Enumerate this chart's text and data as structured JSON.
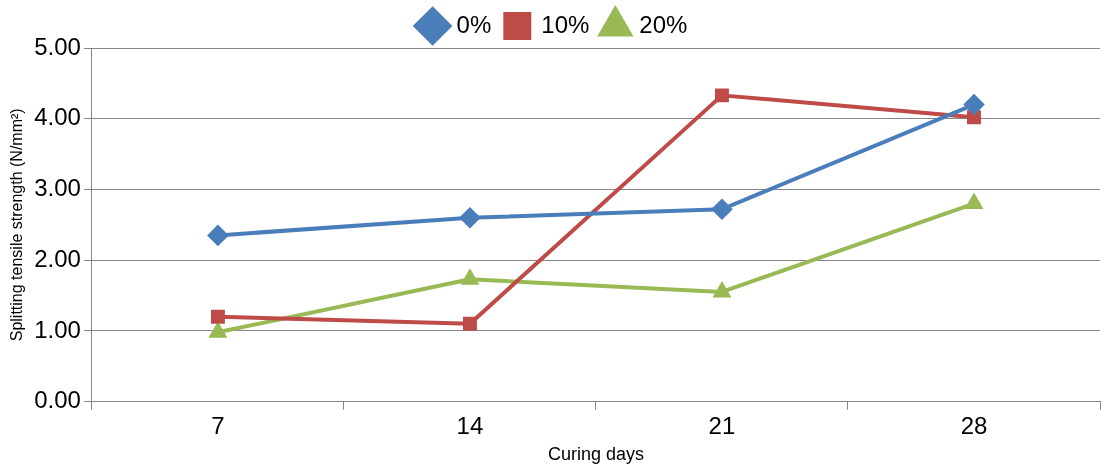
{
  "chart_data": {
    "type": "line",
    "xlabel": "Curing days",
    "ylabel": "Splitting tensile strength (N/mm²)",
    "categories": [
      "7",
      "14",
      "21",
      "28"
    ],
    "series": [
      {
        "name": "0%",
        "color": "#4a7ebb",
        "marker": "diamond",
        "values": [
          2.35,
          2.6,
          2.72,
          4.2
        ]
      },
      {
        "name": "10%",
        "color": "#be4b48",
        "marker": "square",
        "values": [
          1.2,
          1.1,
          4.33,
          4.02
        ]
      },
      {
        "name": "20%",
        "color": "#98b954",
        "marker": "triangle",
        "values": [
          0.98,
          1.73,
          1.55,
          2.8
        ]
      }
    ],
    "ylim": [
      0,
      5
    ],
    "yticks": [
      {
        "value": 0,
        "label": "0.00"
      },
      {
        "value": 1,
        "label": "1.00"
      },
      {
        "value": 2,
        "label": "2.00"
      },
      {
        "value": 3,
        "label": "3.00"
      },
      {
        "value": 4,
        "label": "4.00"
      },
      {
        "value": 5,
        "label": "5.00"
      }
    ],
    "grid": "y",
    "legend": "top",
    "line_style": "solid"
  }
}
